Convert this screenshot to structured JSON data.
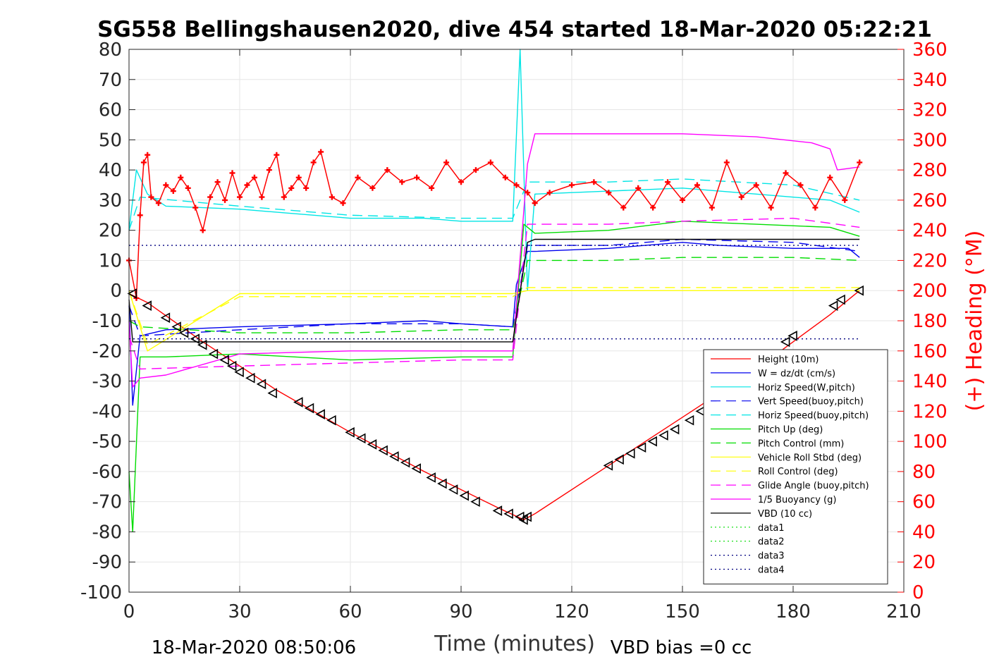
{
  "chart_data": {
    "type": "line",
    "title": "SG558 Bellingshausen2020, dive 454 started 18-Mar-2020 05:22:21",
    "xlabel": "Time (minutes)",
    "ylabel_right": "(+) Heading (°M)",
    "footer_left": "18-Mar-2020 08:50:06",
    "footer_right": "VBD bias =0 cc",
    "xlim": [
      0,
      210
    ],
    "ylim": [
      -100,
      80
    ],
    "ylim_right": [
      0,
      360
    ],
    "x_ticks": [
      "0",
      "30",
      "60",
      "90",
      "120",
      "150",
      "180",
      "210"
    ],
    "y_ticks": [
      "80",
      "70",
      "60",
      "50",
      "40",
      "30",
      "20",
      "10",
      "0",
      "-10",
      "-20",
      "-30",
      "-40",
      "-50",
      "-60",
      "-70",
      "-80",
      "-90",
      "-100"
    ],
    "y_right_ticks": [
      "360",
      "340",
      "320",
      "300",
      "280",
      "260",
      "240",
      "220",
      "200",
      "180",
      "160",
      "140",
      "120",
      "100",
      "80",
      "60",
      "40",
      "20",
      "0"
    ],
    "grid": true,
    "legend_position": "bottom-right",
    "colors": {
      "red": "#ff0000",
      "blue": "#0000ee",
      "cyan": "#00e5e5",
      "green": "#00dd00",
      "yellow": "#ffff00",
      "magenta": "#ff00ff",
      "black": "#000000",
      "navy": "#000080",
      "right_axis": "#ff0000",
      "grid": "#e6e6e6"
    },
    "series": [
      {
        "name": "Height (10m)",
        "color": "#ff0000",
        "dash": "solid",
        "x": [
          0,
          5,
          20,
          40,
          60,
          80,
          100,
          107,
          110,
          130,
          150,
          170,
          190,
          198
        ],
        "values": [
          -1,
          -4,
          -17,
          -33,
          -47,
          -60,
          -72,
          -76,
          -74,
          -58,
          -42,
          -26,
          -8,
          0
        ]
      },
      {
        "name": "W = dz/dt (cm/s)",
        "color": "#0000ee",
        "dash": "solid",
        "x": [
          0,
          1,
          3,
          10,
          30,
          60,
          80,
          90,
          104,
          105,
          108,
          110,
          130,
          150,
          160,
          180,
          195,
          198
        ],
        "values": [
          -5,
          -38,
          -15,
          -13,
          -12,
          -11,
          -10,
          -11,
          -12,
          2,
          13,
          13,
          14,
          16,
          15,
          14,
          14,
          11
        ]
      },
      {
        "name": "Horiz Speed(W,pitch)",
        "color": "#00e5e5",
        "dash": "solid",
        "x": [
          0,
          2,
          5,
          10,
          30,
          60,
          80,
          90,
          104,
          106,
          108,
          110,
          130,
          150,
          170,
          190,
          198
        ],
        "values": [
          20,
          40,
          32,
          28,
          27,
          24,
          24,
          23,
          23,
          80,
          0,
          32,
          33,
          34,
          32,
          30,
          26
        ]
      },
      {
        "name": "Vert Speed(buoy,pitch)",
        "color": "#0000ee",
        "dash": "dash",
        "x": [
          0,
          3,
          30,
          60,
          90,
          104,
          108,
          130,
          150,
          180,
          198
        ],
        "values": [
          -5,
          -15,
          -13,
          -11,
          -11,
          -12,
          15,
          15,
          17,
          16,
          13
        ]
      },
      {
        "name": "Horiz Speed(buoy,pitch)",
        "color": "#00e5e5",
        "dash": "dash",
        "x": [
          0,
          3,
          30,
          60,
          90,
          104,
          108,
          130,
          150,
          180,
          198
        ],
        "values": [
          20,
          31,
          28,
          25,
          24,
          24,
          36,
          36,
          37,
          35,
          30
        ]
      },
      {
        "name": "Pitch Up (deg)",
        "color": "#00dd00",
        "dash": "solid",
        "x": [
          0,
          1,
          3,
          10,
          30,
          60,
          90,
          104,
          107,
          110,
          130,
          150,
          170,
          190,
          198
        ],
        "values": [
          -60,
          -80,
          -22,
          -22,
          -21,
          -23,
          -22,
          -22,
          22,
          19,
          20,
          23,
          22,
          21,
          18
        ]
      },
      {
        "name": "Pitch Control (mm)",
        "color": "#00dd00",
        "dash": "dash",
        "x": [
          0,
          3,
          30,
          60,
          90,
          104,
          108,
          130,
          150,
          180,
          198
        ],
        "values": [
          -10,
          -12,
          -14,
          -14,
          -13,
          -13,
          10,
          10,
          11,
          11,
          10
        ]
      },
      {
        "name": "Vehicle Roll Stbd (deg)",
        "color": "#ffff00",
        "dash": "solid",
        "x": [
          0,
          5,
          30,
          60,
          90,
          104,
          108,
          130,
          150,
          180,
          198
        ],
        "values": [
          0,
          -20,
          -1,
          -1,
          -1,
          -1,
          0,
          0,
          0,
          0,
          0
        ]
      },
      {
        "name": "Roll Control (deg)",
        "color": "#ffff00",
        "dash": "dash",
        "x": [
          0,
          5,
          30,
          60,
          90,
          104,
          108,
          130,
          150,
          180,
          198
        ],
        "values": [
          0,
          -18,
          -2,
          -2,
          -2,
          -2,
          1,
          1,
          1,
          1,
          1
        ]
      },
      {
        "name": "Glide Angle (buoy,pitch)",
        "color": "#ff00ff",
        "dash": "dash",
        "x": [
          0,
          3,
          30,
          60,
          90,
          104,
          108,
          130,
          150,
          180,
          198
        ],
        "values": [
          -15,
          -26,
          -25,
          -24,
          -23,
          -23,
          22,
          22,
          23,
          24,
          21
        ]
      },
      {
        "name": "1/5 Buoyancy (g)",
        "color": "#ff00ff",
        "dash": "solid",
        "x": [
          0,
          1,
          3,
          10,
          30,
          60,
          90,
          104,
          108,
          110,
          130,
          150,
          170,
          185,
          190,
          192,
          198
        ],
        "values": [
          -10,
          -32,
          -29,
          -28,
          -21,
          -20,
          -20,
          -20,
          42,
          52,
          52,
          52,
          51,
          49,
          47,
          40,
          41
        ]
      },
      {
        "name": "VBD (10 cc)",
        "color": "#000000",
        "dash": "solid",
        "x": [
          0,
          1,
          30,
          60,
          90,
          104,
          108,
          110,
          130,
          160,
          190,
          198
        ],
        "values": [
          -3,
          -17,
          -17,
          -17,
          -17,
          -17,
          16,
          17,
          17,
          17,
          17,
          17
        ]
      },
      {
        "name": "data1",
        "color": "#00dd00",
        "dash": "dot",
        "x": [
          0,
          198
        ],
        "values": [
          null,
          null
        ]
      },
      {
        "name": "data2",
        "color": "#00dd00",
        "dash": "dot",
        "x": [
          0,
          198
        ],
        "values": [
          null,
          null
        ]
      },
      {
        "name": "data3",
        "color": "#000080",
        "dash": "dot",
        "x": [
          0,
          198
        ],
        "values": [
          -16,
          -16
        ]
      },
      {
        "name": "data4",
        "color": "#000080",
        "dash": "dot",
        "x": [
          0,
          198
        ],
        "values": [
          15,
          15
        ]
      }
    ],
    "heading_series": {
      "color": "#ff0000",
      "axis": "right",
      "x": [
        0,
        2,
        3,
        4,
        5,
        6,
        8,
        10,
        12,
        14,
        16,
        18,
        20,
        22,
        24,
        26,
        28,
        30,
        32,
        34,
        36,
        38,
        40,
        42,
        44,
        46,
        48,
        50,
        52,
        55,
        58,
        62,
        66,
        70,
        74,
        78,
        82,
        86,
        90,
        94,
        98,
        102,
        105,
        108,
        110,
        114,
        120,
        126,
        130,
        134,
        138,
        142,
        146,
        150,
        154,
        158,
        162,
        166,
        170,
        174,
        178,
        182,
        186,
        190,
        194,
        198
      ],
      "values": [
        220,
        195,
        250,
        285,
        290,
        262,
        258,
        270,
        266,
        275,
        268,
        255,
        240,
        262,
        272,
        260,
        278,
        262,
        270,
        275,
        262,
        280,
        290,
        262,
        268,
        275,
        268,
        285,
        292,
        262,
        258,
        275,
        268,
        280,
        272,
        275,
        268,
        285,
        272,
        280,
        285,
        275,
        270,
        265,
        258,
        265,
        270,
        272,
        265,
        255,
        268,
        255,
        272,
        260,
        270,
        255,
        285,
        262,
        270,
        255,
        278,
        270,
        255,
        275,
        260,
        285
      ]
    },
    "glider_markers": {
      "symbol": "triangle",
      "x": [
        1,
        5,
        10,
        13,
        15,
        18,
        20,
        23,
        26,
        28,
        30,
        33,
        36,
        39,
        46,
        49,
        52,
        55,
        60,
        63,
        66,
        69,
        72,
        75,
        78,
        82,
        85,
        88,
        91,
        94,
        100,
        103,
        106,
        107,
        108,
        130,
        133,
        136,
        139,
        142,
        145,
        148,
        152,
        155,
        178,
        180,
        191,
        193,
        198
      ],
      "values": [
        -1,
        -5,
        -9,
        -12,
        -14,
        -16,
        -18,
        -21,
        -23,
        -25,
        -27,
        -29,
        -31,
        -34,
        -37,
        -39,
        -41,
        -43,
        -47,
        -49,
        -51,
        -53,
        -55,
        -57,
        -59,
        -62,
        -64,
        -66,
        -68,
        -70,
        -73,
        -74,
        -75,
        -76,
        -75,
        -58,
        -56,
        -54,
        -52,
        -50,
        -48,
        -46,
        -43,
        -40,
        -17,
        -15,
        -5,
        -3,
        0
      ]
    }
  }
}
